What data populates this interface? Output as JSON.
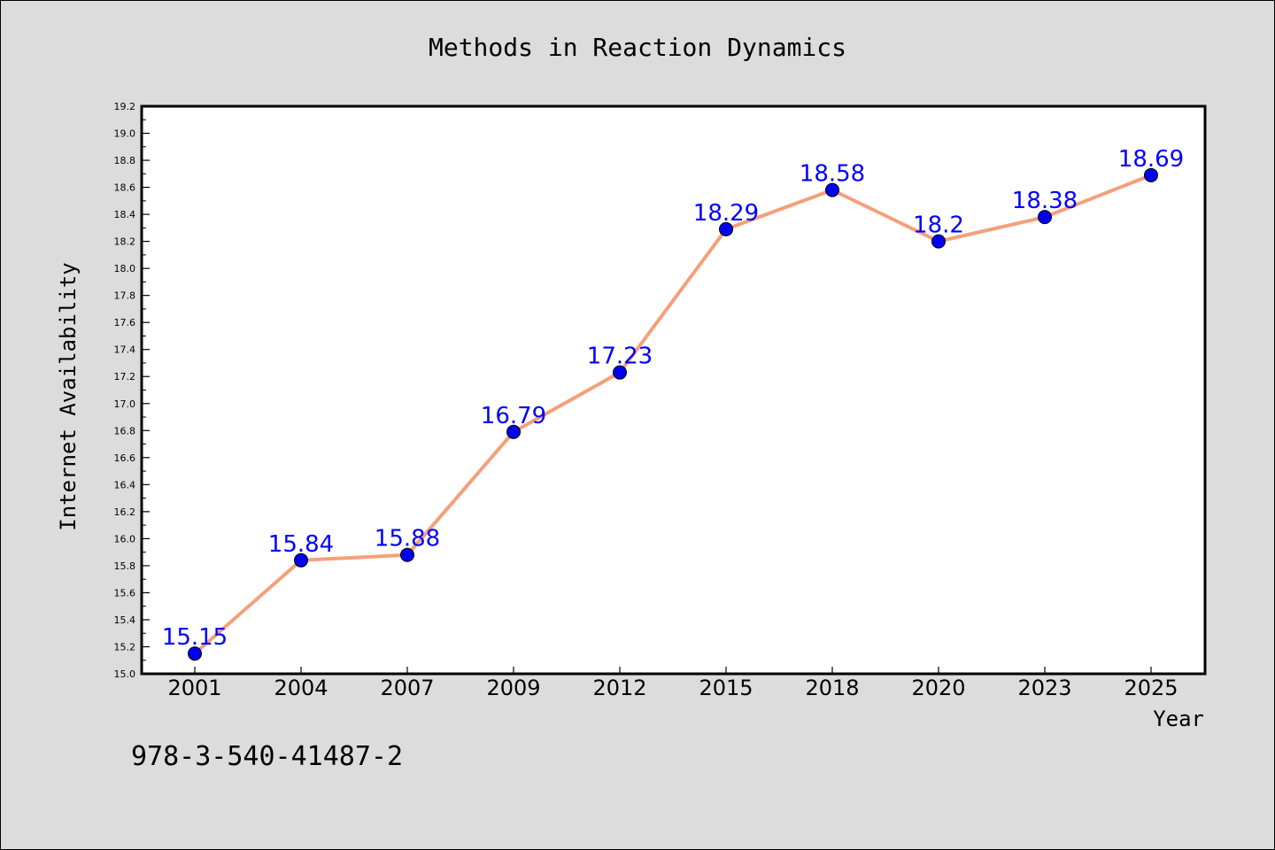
{
  "chart_data": {
    "type": "line",
    "title": "Methods in Reaction Dynamics",
    "xlabel": "Year",
    "ylabel": "Internet Availability",
    "categories": [
      "2001",
      "2004",
      "2007",
      "2009",
      "2012",
      "2015",
      "2018",
      "2020",
      "2023",
      "2025"
    ],
    "series": [
      {
        "values": [
          15.15,
          15.84,
          15.88,
          16.79,
          17.23,
          18.29,
          18.58,
          18.2,
          18.38,
          18.69
        ],
        "data_labels": [
          "15.15",
          "15.84",
          "15.88",
          "16.79",
          "17.23",
          "18.29",
          "18.58",
          "18.2",
          "18.38",
          "18.69"
        ],
        "line_color": "#f4a07a",
        "marker_color": "#0000ee"
      }
    ],
    "ylim": [
      15.0,
      19.2
    ],
    "yticks": [
      "15.0",
      "15.2",
      "15.4",
      "15.6",
      "15.8",
      "16.0",
      "16.2",
      "16.4",
      "16.6",
      "16.8",
      "17.0",
      "17.2",
      "17.4",
      "17.6",
      "17.8",
      "18.0",
      "18.2",
      "18.4",
      "18.6",
      "18.8",
      "19.0",
      "19.2"
    ],
    "grid": false,
    "legend": "none",
    "plot_background": "#ffffff",
    "figure_background": "#dcdcdc",
    "label_color": "#0000ff"
  },
  "footnote": "978-3-540-41487-2"
}
